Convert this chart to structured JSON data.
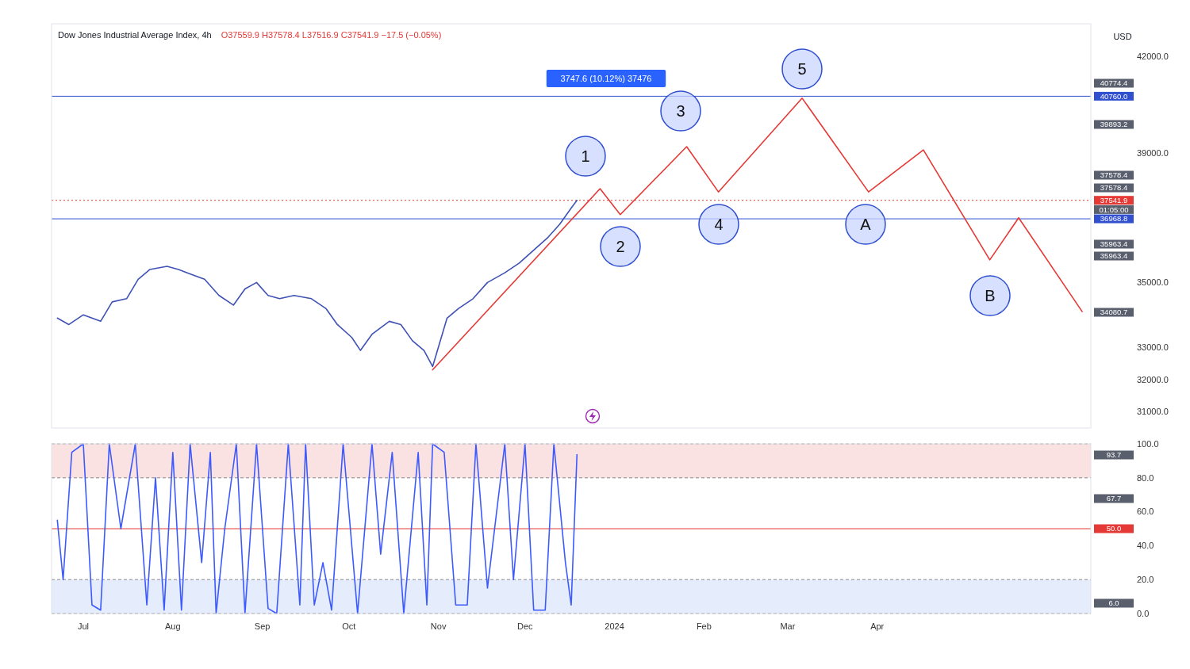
{
  "chart_data": [
    {
      "type": "line",
      "title": "Dow Jones Industrial Average Index, 4h",
      "subtitle": "O37559.9 H37578.4 L37516.9 C37541.9 −17.5 (−0.05%)",
      "ylabel": "USD",
      "xlim": [
        "2023-06-20",
        "2024-06-14"
      ],
      "ylim": [
        30500,
        43000
      ],
      "yticks": [
        {
          "value": 31000,
          "label": "31000.0"
        },
        {
          "value": 32000,
          "label": "32000.0"
        },
        {
          "value": 33000,
          "label": "33000.0"
        },
        {
          "value": 35000,
          "label": "35000.0"
        },
        {
          "value": 39000,
          "label": "39000.0"
        },
        {
          "value": 42000,
          "label": "42000.0"
        }
      ],
      "tick_labels": "y",
      "series": [
        {
          "color": "#3f51b5",
          "x": [
            "2023-06-22",
            "2023-06-26",
            "2023-07-01",
            "2023-07-07",
            "2023-07-11",
            "2023-07-16",
            "2023-07-20",
            "2023-07-24",
            "2023-07-30",
            "2023-08-03",
            "2023-08-06",
            "2023-08-12",
            "2023-08-17",
            "2023-08-22",
            "2023-08-26",
            "2023-08-30",
            "2023-09-03",
            "2023-09-07",
            "2023-09-12",
            "2023-09-18",
            "2023-09-23",
            "2023-09-27",
            "2023-10-02",
            "2023-10-05",
            "2023-10-09",
            "2023-10-15",
            "2023-10-19",
            "2023-10-23",
            "2023-10-27",
            "2023-10-30",
            "2023-11-04",
            "2023-11-08",
            "2023-11-13",
            "2023-11-18",
            "2023-11-24",
            "2023-11-29",
            "2023-12-04",
            "2023-12-09",
            "2023-12-13",
            "2023-12-17",
            "2023-12-19"
          ],
          "values": [
            33900,
            33700,
            34000,
            33800,
            34400,
            34500,
            35100,
            35400,
            35500,
            35400,
            35300,
            35100,
            34600,
            34300,
            34800,
            35000,
            34600,
            34500,
            34600,
            34500,
            34200,
            33700,
            33300,
            32900,
            33400,
            33800,
            33700,
            33200,
            32900,
            32400,
            33900,
            34200,
            34500,
            35000,
            35300,
            35600,
            36000,
            36400,
            36800,
            37300,
            37540
          ]
        },
        {
          "color": "#e53935",
          "x": [
            "2023-10-30",
            "2023-12-27",
            "2024-01-03",
            "2024-01-26",
            "2024-02-06",
            "2024-03-06",
            "2024-03-29",
            "2024-04-17",
            "2024-05-10",
            "2024-05-20",
            "2024-06-11"
          ],
          "values": [
            32300,
            37900,
            37100,
            39200,
            37800,
            40700,
            37800,
            39100,
            35700,
            37000,
            34100
          ]
        }
      ],
      "ref_lines": [
        {
          "axis": "y",
          "value": 40760,
          "label": "40760.0",
          "color": "#3050d0"
        },
        {
          "axis": "y",
          "value": 36968.8,
          "label": "36968.8",
          "color": "#3050d0"
        },
        {
          "axis": "y",
          "value": 37541.9,
          "label": "37541.9",
          "color": "#e53935",
          "line_style": "dotted"
        }
      ],
      "annotations": [
        "1",
        "2",
        "3",
        "4",
        "5",
        "A",
        "B",
        "3747.6 (10.12%) 37476",
        "40774.4",
        "39893.2",
        "37578.4",
        "37578.4",
        "01:05:00",
        "35963.4",
        "35963.4",
        "34080.7"
      ]
    },
    {
      "type": "line",
      "xlim": [
        "2023-06-20",
        "2024-06-14"
      ],
      "ylim": [
        0,
        100
      ],
      "xticks": [
        {
          "value": "2023-07-01",
          "label": "Jul"
        },
        {
          "value": "2023-08-01",
          "label": "Aug"
        },
        {
          "value": "2023-09-01",
          "label": "Sep"
        },
        {
          "value": "2023-10-01",
          "label": "Oct"
        },
        {
          "value": "2023-11-01",
          "label": "Nov"
        },
        {
          "value": "2023-12-01",
          "label": "Dec"
        },
        {
          "value": "2024-01-01",
          "label": "2024"
        },
        {
          "value": "2024-02-01",
          "label": "Feb"
        },
        {
          "value": "2024-03-01",
          "label": "Mar"
        },
        {
          "value": "2024-04-01",
          "label": "Apr"
        }
      ],
      "yticks": [
        {
          "value": 0,
          "label": "0.0"
        },
        {
          "value": 20,
          "label": "20.0"
        },
        {
          "value": 40,
          "label": "40.0"
        },
        {
          "value": 60,
          "label": "60.0"
        },
        {
          "value": 80,
          "label": "80.0"
        },
        {
          "value": 100,
          "label": "100.0"
        }
      ],
      "series": [
        {
          "color": "#3d5afe",
          "x": [
            "2023-06-22",
            "2023-06-24",
            "2023-06-27",
            "2023-07-01",
            "2023-07-04",
            "2023-07-07",
            "2023-07-10",
            "2023-07-14",
            "2023-07-19",
            "2023-07-23",
            "2023-07-26",
            "2023-07-29",
            "2023-08-01",
            "2023-08-04",
            "2023-08-07",
            "2023-08-11",
            "2023-08-14",
            "2023-08-16",
            "2023-08-19",
            "2023-08-23",
            "2023-08-26",
            "2023-08-30",
            "2023-09-03",
            "2023-09-06",
            "2023-09-10",
            "2023-09-14",
            "2023-09-16",
            "2023-09-19",
            "2023-09-22",
            "2023-09-25",
            "2023-09-29",
            "2023-10-04",
            "2023-10-09",
            "2023-10-12",
            "2023-10-16",
            "2023-10-20",
            "2023-10-25",
            "2023-10-28",
            "2023-10-30",
            "2023-11-03",
            "2023-11-07",
            "2023-11-11",
            "2023-11-14",
            "2023-11-18",
            "2023-11-24",
            "2023-11-27",
            "2023-12-01",
            "2023-12-04",
            "2023-12-08",
            "2023-12-11",
            "2023-12-15",
            "2023-12-17",
            "2023-12-19"
          ],
          "values": [
            55,
            20,
            95,
            100,
            5,
            2,
            100,
            50,
            100,
            5,
            80,
            2,
            95,
            2,
            100,
            30,
            95,
            0,
            50,
            100,
            0,
            100,
            3,
            0,
            100,
            5,
            100,
            5,
            30,
            2,
            100,
            0,
            100,
            35,
            95,
            0,
            95,
            5,
            100,
            95,
            5,
            5,
            100,
            15,
            100,
            20,
            100,
            2,
            2,
            100,
            30,
            5,
            93.7
          ]
        }
      ],
      "bands": [
        {
          "axis": "y",
          "from": 80,
          "to": 100,
          "color": "#f8caca"
        },
        {
          "axis": "y",
          "from": 0,
          "to": 20,
          "color": "#cfdcf8"
        }
      ],
      "ref_lines": [
        {
          "axis": "y",
          "value": 50,
          "label": "50.0",
          "color": "#e53935"
        }
      ],
      "annotations": [
        "93.7",
        "67.7",
        "6.0"
      ]
    }
  ]
}
